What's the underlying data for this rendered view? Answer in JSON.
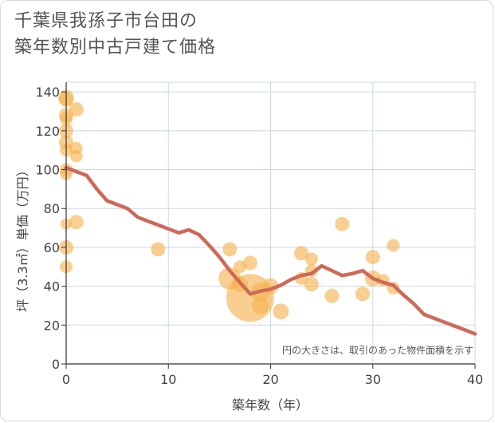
{
  "chart_data": {
    "type": "scatter",
    "title_lines": [
      "千葉県我孫子市台田の",
      "築年数別中古戸建て価格"
    ],
    "xlabel": "築年数（年）",
    "ylabel": "坪（3.3㎡）単価（万円）",
    "xlim": [
      0,
      40
    ],
    "ylim": [
      0,
      145
    ],
    "x_ticks": [
      0,
      10,
      20,
      30,
      40
    ],
    "y_ticks": [
      0,
      20,
      40,
      60,
      80,
      100,
      120,
      140
    ],
    "grid": true,
    "note": "円の大きさは、取引のあった物件面積を示す",
    "colors": {
      "bubble": "#f5b24d",
      "line": "#d0685a",
      "grid": "#c9d8e6",
      "axis": "#333333"
    },
    "bubbles": [
      {
        "x": 0,
        "y": 137,
        "size": 10
      },
      {
        "x": 0,
        "y": 136,
        "size": 9
      },
      {
        "x": 0,
        "y": 128,
        "size": 9
      },
      {
        "x": 0,
        "y": 126,
        "size": 8
      },
      {
        "x": 0,
        "y": 120,
        "size": 9
      },
      {
        "x": 0,
        "y": 114,
        "size": 9
      },
      {
        "x": 0,
        "y": 110,
        "size": 8
      },
      {
        "x": 0,
        "y": 100,
        "size": 8
      },
      {
        "x": 0,
        "y": 98,
        "size": 8
      },
      {
        "x": 0,
        "y": 72,
        "size": 7
      },
      {
        "x": 0,
        "y": 60,
        "size": 9
      },
      {
        "x": 0,
        "y": 50,
        "size": 8
      },
      {
        "x": 1,
        "y": 131,
        "size": 9
      },
      {
        "x": 1,
        "y": 111,
        "size": 8
      },
      {
        "x": 1,
        "y": 107,
        "size": 8
      },
      {
        "x": 1,
        "y": 73,
        "size": 9
      },
      {
        "x": 9,
        "y": 59,
        "size": 9
      },
      {
        "x": 16,
        "y": 59,
        "size": 9
      },
      {
        "x": 16,
        "y": 44,
        "size": 14
      },
      {
        "x": 17,
        "y": 50,
        "size": 8
      },
      {
        "x": 17,
        "y": 41,
        "size": 10
      },
      {
        "x": 18,
        "y": 52,
        "size": 9
      },
      {
        "x": 18,
        "y": 34,
        "size": 30
      },
      {
        "x": 19,
        "y": 37,
        "size": 12
      },
      {
        "x": 19,
        "y": 30,
        "size": 11
      },
      {
        "x": 20,
        "y": 40,
        "size": 10
      },
      {
        "x": 21,
        "y": 27,
        "size": 10
      },
      {
        "x": 23,
        "y": 57,
        "size": 9
      },
      {
        "x": 23,
        "y": 44,
        "size": 8
      },
      {
        "x": 24,
        "y": 54,
        "size": 8
      },
      {
        "x": 24,
        "y": 48,
        "size": 8
      },
      {
        "x": 24,
        "y": 41,
        "size": 9
      },
      {
        "x": 26,
        "y": 35,
        "size": 9
      },
      {
        "x": 27,
        "y": 72,
        "size": 9
      },
      {
        "x": 29,
        "y": 36,
        "size": 9
      },
      {
        "x": 30,
        "y": 55,
        "size": 9
      },
      {
        "x": 30,
        "y": 44,
        "size": 10
      },
      {
        "x": 31,
        "y": 43,
        "size": 8
      },
      {
        "x": 32,
        "y": 61,
        "size": 8
      },
      {
        "x": 32,
        "y": 39,
        "size": 8
      }
    ],
    "trend_line": {
      "x": [
        0,
        1,
        2,
        3,
        4,
        5,
        6,
        7,
        8,
        9,
        10,
        11,
        12,
        13,
        14,
        15,
        16,
        17,
        18,
        19,
        20,
        21,
        22,
        23,
        24,
        25,
        26,
        27,
        28,
        29,
        30,
        31,
        32,
        33,
        34,
        35,
        36,
        37,
        38,
        39,
        40
      ],
      "y": [
        101,
        99,
        97,
        90,
        84,
        82,
        80,
        75.5,
        73.5,
        71.5,
        69.5,
        67.5,
        69,
        66.5,
        61,
        55,
        48,
        42,
        36,
        37.5,
        38.5,
        40.5,
        43.5,
        45.5,
        46.5,
        50.5,
        48,
        45.5,
        46.5,
        48,
        44,
        42,
        40.5,
        35.5,
        31,
        25.5,
        23.5,
        21.5,
        19.5,
        17.5,
        15.5
      ]
    }
  }
}
